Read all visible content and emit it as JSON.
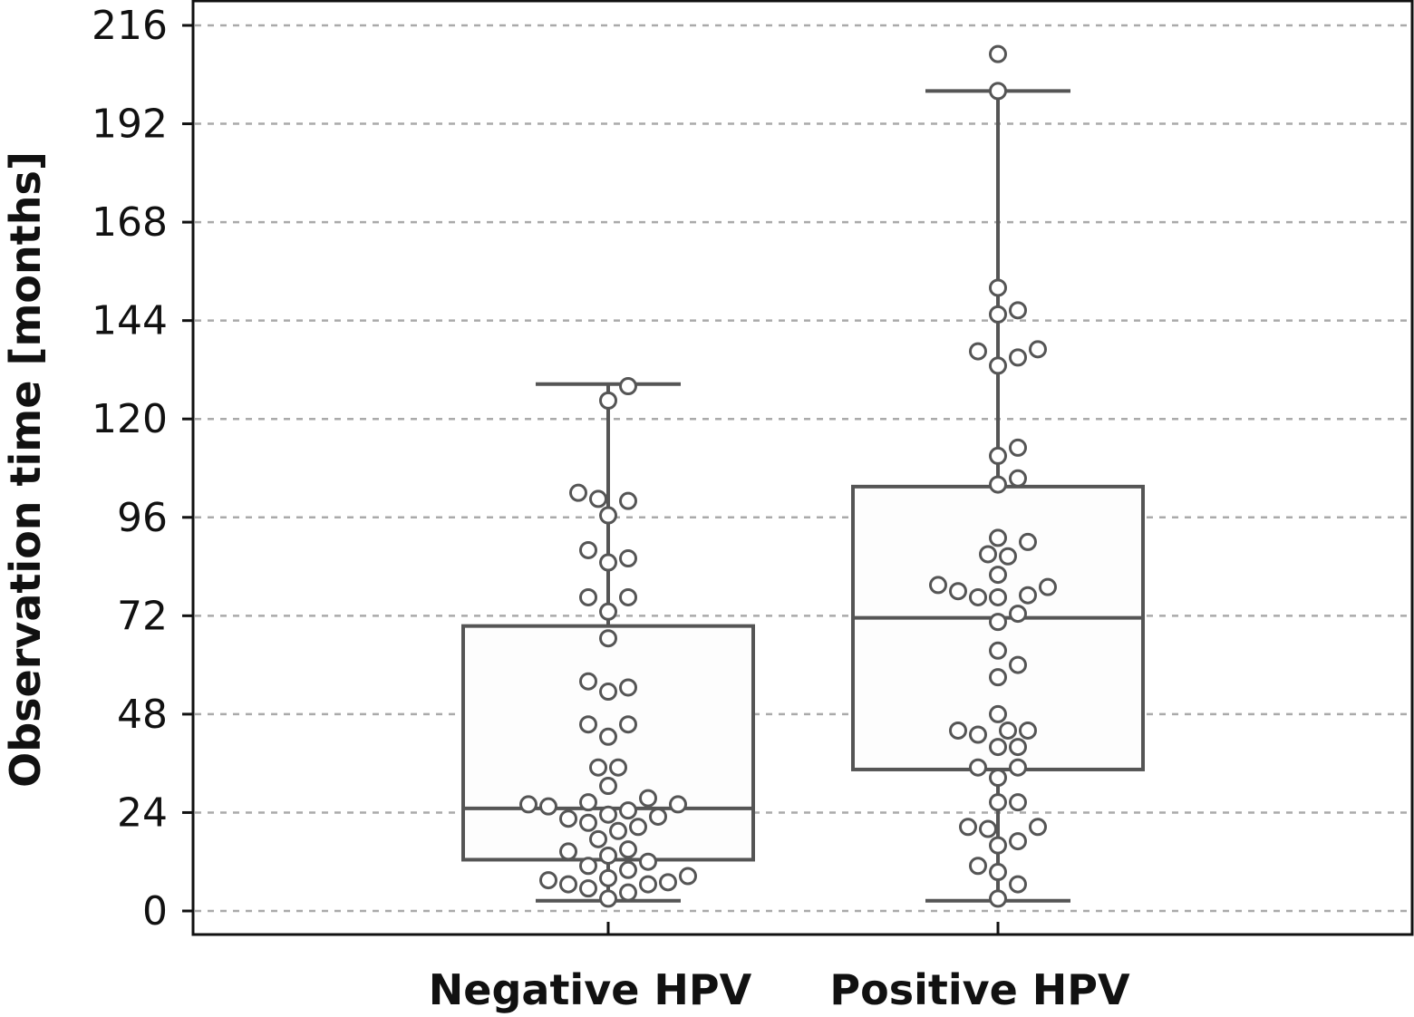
{
  "chart_data": {
    "type": "box",
    "title": "",
    "xlabel": "",
    "ylabel": "Observation time [months]",
    "ylim": [
      -6,
      220
    ],
    "yticks": [
      0,
      24,
      48,
      72,
      96,
      120,
      144,
      168,
      192,
      216
    ],
    "grid": "horizontal dashed",
    "legend": "none",
    "colors": {
      "box": "#555555",
      "points_fill": "#ffffff",
      "points_edge": "#555555",
      "grid": "#aaaaaa"
    },
    "categories": [
      "Negative HPV",
      "Positive HPV"
    ],
    "boxes": [
      {
        "category": "Negative HPV",
        "whisker_low": 2.5,
        "q1": 12.5,
        "median": 25,
        "q3": 69.5,
        "whisker_high": 128.5
      },
      {
        "category": "Positive HPV",
        "whisker_low": 2.5,
        "q1": 34.5,
        "median": 71.5,
        "q3": 103.5,
        "whisker_high": 200
      }
    ],
    "points": [
      {
        "category": "Negative HPV",
        "values": [
          3,
          4.5,
          5.5,
          6.5,
          6.5,
          7,
          7.5,
          8,
          8.5,
          10,
          11,
          12,
          13.5,
          14.5,
          15,
          17.5,
          19.5,
          20.5,
          21.5,
          22.5,
          23,
          23.5,
          24.5,
          25.5,
          26,
          26.5,
          26,
          27.5,
          30.5,
          35,
          35,
          42.5,
          45.5,
          45.5,
          53.5,
          54.5,
          56,
          66.5,
          73,
          76.5,
          76.5,
          86,
          85,
          88,
          96.5,
          100.5,
          100,
          102,
          124.5,
          128
        ]
      },
      {
        "category": "Positive HPV",
        "values": [
          3,
          6.5,
          9.5,
          11,
          16,
          17,
          20,
          20.5,
          20.5,
          26.5,
          26.5,
          32.5,
          35,
          35,
          40,
          40,
          43,
          44,
          44,
          44,
          48,
          57,
          60,
          63.5,
          70.5,
          72.5,
          76.5,
          76.5,
          77,
          78,
          79,
          79.5,
          82,
          86.5,
          87,
          90,
          91,
          104,
          105.5,
          111,
          113,
          133,
          135,
          137,
          136.5,
          145.5,
          146.5,
          152,
          200,
          209
        ]
      }
    ]
  }
}
